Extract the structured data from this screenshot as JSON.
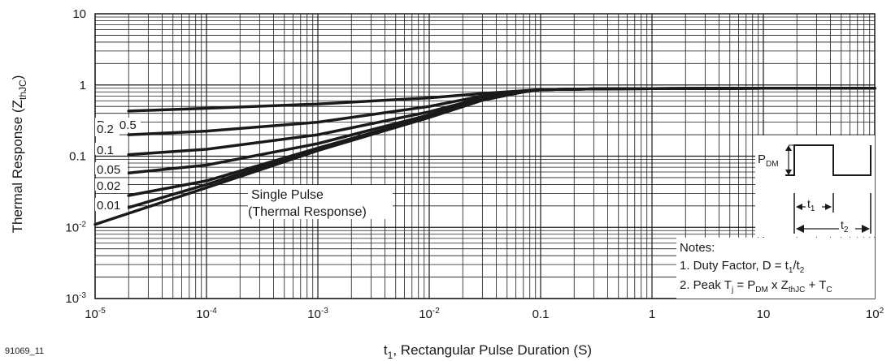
{
  "figure_id": "91069_11",
  "chart_data": {
    "type": "line",
    "xscale": "log",
    "yscale": "log",
    "xlim": [
      1e-05,
      100
    ],
    "ylim": [
      0.001,
      10
    ],
    "grid": true,
    "xlabel": {
      "pre": "t",
      "sub": "1",
      "post": ", Rectangular Pulse Duration (S)"
    },
    "ylabel": {
      "pre": "Thermal Response (Z",
      "sub": "thJC",
      "post": ")"
    },
    "x_ticks": [
      {
        "base": "10",
        "exp": "-5"
      },
      {
        "base": "10",
        "exp": "-4"
      },
      {
        "base": "10",
        "exp": "-3"
      },
      {
        "base": "10",
        "exp": "-2"
      },
      {
        "base": "0.1",
        "exp": ""
      },
      {
        "base": "1",
        "exp": ""
      },
      {
        "base": "10",
        "exp": ""
      },
      {
        "base": "10",
        "exp": "2"
      }
    ],
    "y_ticks": [
      {
        "base": "10",
        "exp": "-3"
      },
      {
        "base": "10",
        "exp": "-2"
      },
      {
        "base": "0.1",
        "exp": ""
      },
      {
        "base": "1",
        "exp": ""
      },
      {
        "base": "10",
        "exp": ""
      }
    ],
    "series": [
      {
        "name": "D = 0.5",
        "x": [
          2e-05,
          0.0001,
          0.001,
          0.01,
          0.03,
          0.07,
          0.1,
          0.3,
          1,
          10,
          100
        ],
        "y": [
          0.43,
          0.47,
          0.54,
          0.66,
          0.76,
          0.83,
          0.86,
          0.88,
          0.89,
          0.9,
          0.9
        ]
      },
      {
        "name": "0.2",
        "x": [
          2e-05,
          0.0001,
          0.001,
          0.01,
          0.03,
          0.07,
          0.1,
          0.3,
          1,
          10,
          100
        ],
        "y": [
          0.2,
          0.225,
          0.3,
          0.5,
          0.7,
          0.82,
          0.86,
          0.88,
          0.89,
          0.9,
          0.9
        ]
      },
      {
        "name": "0.1",
        "x": [
          2e-05,
          0.0001,
          0.001,
          0.01,
          0.03,
          0.07,
          0.1,
          0.3,
          1,
          10,
          100
        ],
        "y": [
          0.105,
          0.125,
          0.2,
          0.42,
          0.66,
          0.81,
          0.86,
          0.88,
          0.89,
          0.9,
          0.9
        ]
      },
      {
        "name": "0.05",
        "x": [
          2e-05,
          0.0001,
          0.001,
          0.01,
          0.03,
          0.07,
          0.1,
          0.3,
          1,
          10,
          100
        ],
        "y": [
          0.058,
          0.075,
          0.15,
          0.38,
          0.63,
          0.8,
          0.86,
          0.88,
          0.89,
          0.9,
          0.9
        ]
      },
      {
        "name": "0.02",
        "x": [
          2e-05,
          0.0001,
          0.001,
          0.01,
          0.03,
          0.07,
          0.1,
          0.3,
          1,
          10,
          100
        ],
        "y": [
          0.028,
          0.045,
          0.13,
          0.36,
          0.62,
          0.8,
          0.86,
          0.88,
          0.89,
          0.9,
          0.9
        ]
      },
      {
        "name": "0.01",
        "x": [
          2e-05,
          0.0001,
          0.001,
          0.01,
          0.03,
          0.07,
          0.1,
          0.3,
          1,
          10,
          100
        ],
        "y": [
          0.019,
          0.04,
          0.125,
          0.355,
          0.62,
          0.8,
          0.86,
          0.88,
          0.89,
          0.9,
          0.9
        ]
      },
      {
        "name": "Single Pulse (Thermal Response)",
        "x": [
          1e-05,
          0.0001,
          0.001,
          0.01,
          0.03,
          0.07,
          0.1,
          0.3,
          1,
          10,
          100
        ],
        "y": [
          0.011,
          0.036,
          0.12,
          0.35,
          0.61,
          0.8,
          0.86,
          0.88,
          0.89,
          0.9,
          0.9
        ]
      }
    ],
    "curve_labels": [
      "D = 0.5",
      "0.2",
      "0.1",
      "0.05",
      "0.02",
      "0.01"
    ],
    "single_pulse_label": [
      "Single Pulse",
      "(Thermal Response)"
    ],
    "inset": {
      "pdm": {
        "pre": "P",
        "sub": "DM"
      },
      "t1": {
        "pre": "t",
        "sub": "1"
      },
      "t2": {
        "pre": "t",
        "sub": "2"
      }
    },
    "notes": {
      "title": "Notes:",
      "line1": {
        "text": "1.  Duty Factor, D = t",
        "sub1": "1",
        "mid": "/t",
        "sub2": "2"
      },
      "line2": {
        "a": "2.  Peak T",
        "sub_j": "j",
        "b": " = P",
        "sub_dm": "DM",
        "c": " x Z",
        "sub_thjc": "thJC",
        "d": " + T",
        "sub_c": "C"
      }
    }
  }
}
